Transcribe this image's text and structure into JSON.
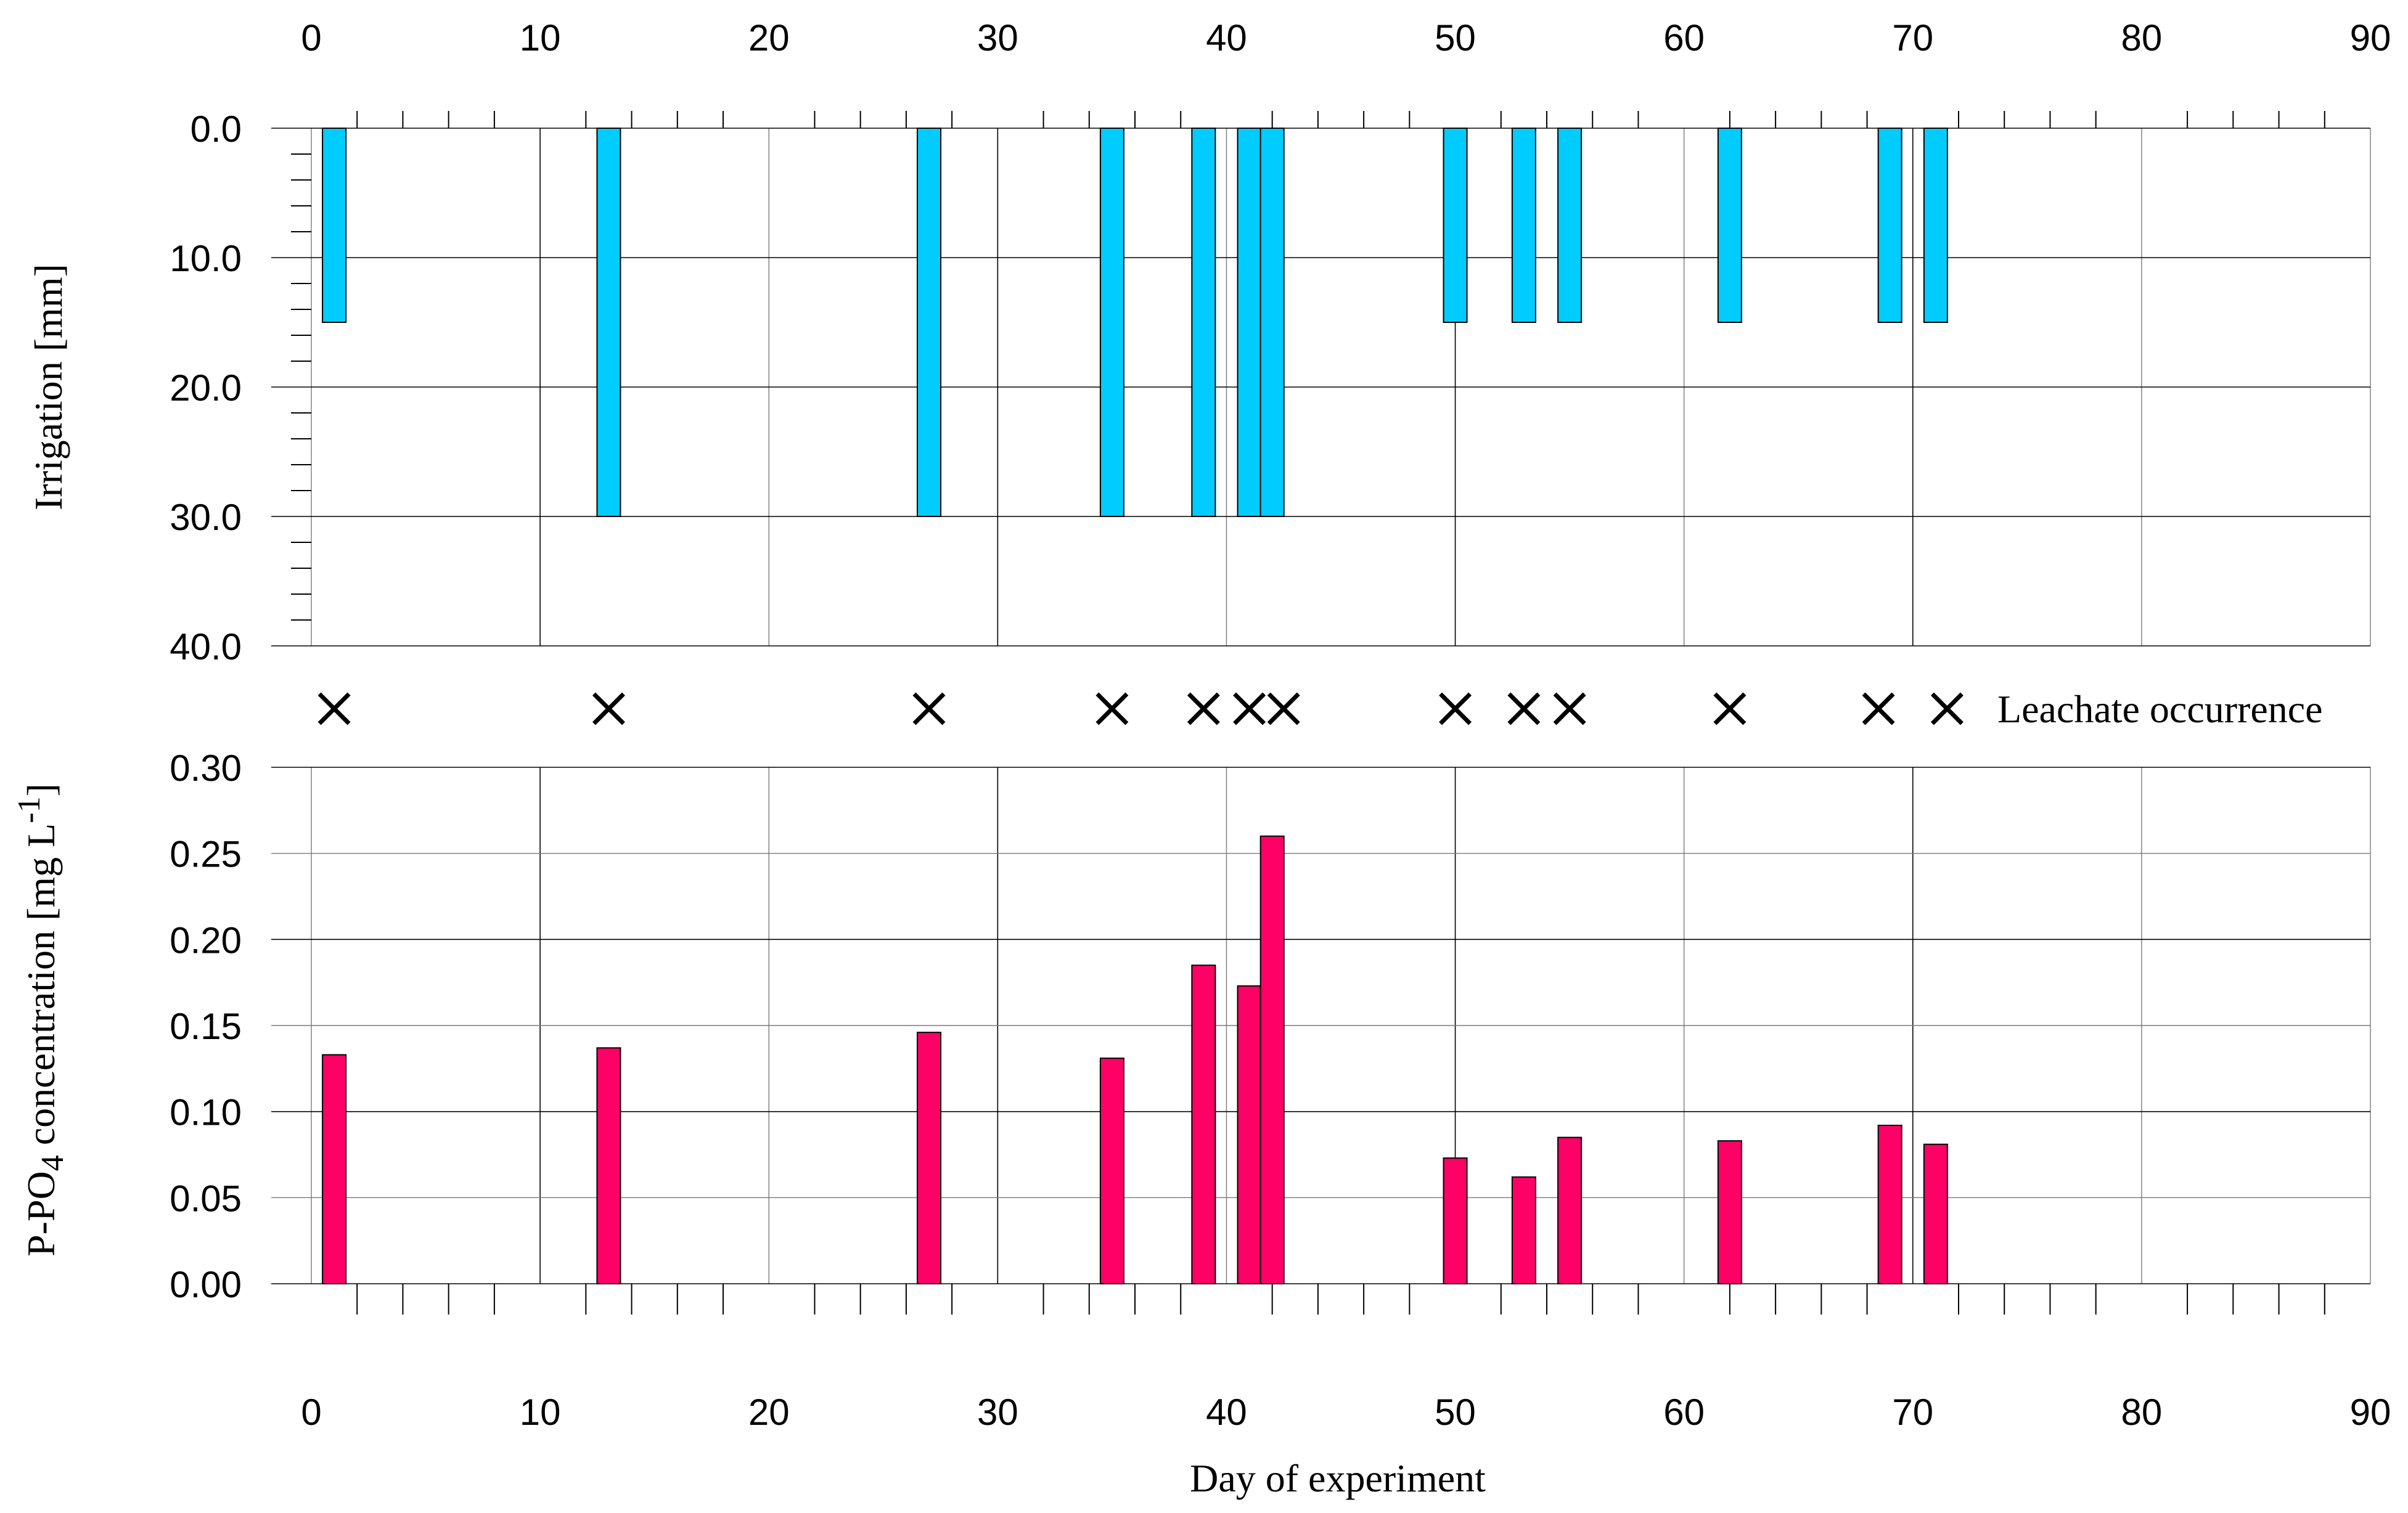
{
  "chart_data": [
    {
      "id": "irrigation",
      "type": "bar",
      "ylabel": "Irrigation [mm]",
      "y_inverted": true,
      "ylim": [
        0,
        40
      ],
      "yticks": [
        "0.0",
        "10.0",
        "20.0",
        "30.0",
        "40.0"
      ],
      "xlim": [
        0,
        90
      ],
      "xticks": [
        "0",
        "10",
        "20",
        "30",
        "40",
        "50",
        "60",
        "70",
        "80",
        "90"
      ],
      "bar_color": "#00ccff",
      "days": [
        1,
        13,
        27,
        35,
        39,
        41,
        42,
        50,
        53,
        55,
        62,
        69,
        71
      ],
      "values": [
        15,
        30,
        30,
        30,
        30,
        30,
        30,
        15,
        15,
        15,
        15,
        15,
        15
      ]
    },
    {
      "id": "leachate",
      "type": "scatter",
      "marker": "x",
      "label": "Leachate occurrence",
      "days": [
        1,
        13,
        27,
        35,
        39,
        41,
        42.5,
        50,
        53,
        55,
        62,
        68.5,
        71.5
      ]
    },
    {
      "id": "phosphate",
      "type": "bar",
      "ylabel_prefix": "P-PO",
      "ylabel_sub": "4",
      "ylabel_main": " concentration [mg L",
      "ylabel_sup": "-1",
      "ylabel_end": "]",
      "xlabel": "Day of experiment",
      "ylim": [
        0,
        0.3
      ],
      "yticks": [
        "0.00",
        "0.05",
        "0.10",
        "0.15",
        "0.20",
        "0.25",
        "0.30"
      ],
      "xlim": [
        0,
        90
      ],
      "xticks": [
        "0",
        "10",
        "20",
        "30",
        "40",
        "50",
        "60",
        "70",
        "80",
        "90"
      ],
      "bar_color": "#ff0066",
      "days": [
        1,
        13,
        27,
        35,
        39,
        41,
        42,
        50,
        53,
        55,
        62,
        69,
        71
      ],
      "values": [
        0.133,
        0.137,
        0.146,
        0.131,
        0.185,
        0.173,
        0.26,
        0.073,
        0.062,
        0.085,
        0.083,
        0.092,
        0.081
      ]
    }
  ]
}
